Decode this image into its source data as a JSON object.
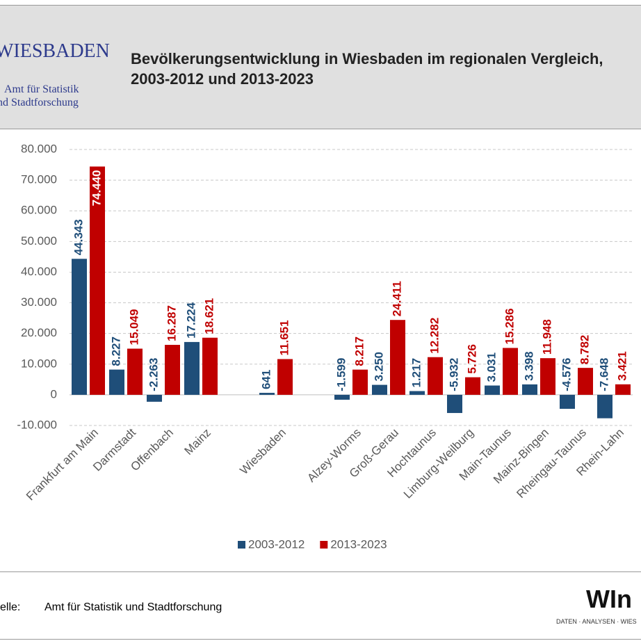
{
  "header": {
    "logo_name": "WIESBADEN",
    "logo_line1": "Amt für Statistik",
    "logo_line2": "nd Stadtforschung"
  },
  "chart_data": {
    "type": "bar",
    "title": "Bevölkerungsentwicklung in Wiesbaden im regionalen Vergleich, 2003-2012 und 2013-2023",
    "categories": [
      "Frankfurt am Main",
      "Darmstadt",
      "Offenbach",
      "Mainz",
      null,
      "Wiesbaden",
      null,
      "Alzey-Worms",
      "Groß-Gerau",
      "Hochtaunus",
      "Limburg-Weilburg",
      "Main-Taunus",
      "Mainz-Bingen",
      "Rheingau-Taunus",
      "Rhein-Lahn"
    ],
    "series": [
      {
        "name": "2003-2012",
        "color": "#1f4e79",
        "values": [
          44343,
          8227,
          -2263,
          17224,
          null,
          641,
          null,
          -1599,
          3250,
          1217,
          -5932,
          3031,
          3398,
          -4576,
          -7648
        ],
        "value_labels": [
          "44.343",
          "8.227",
          "-2.263",
          "17.224",
          null,
          "641",
          null,
          "-1.599",
          "3.250",
          "1.217",
          "-5.932",
          "3.031",
          "3.398",
          "-4.576",
          "-7.648"
        ]
      },
      {
        "name": "2013-2023",
        "color": "#c00000",
        "values": [
          74440,
          15049,
          16287,
          18621,
          null,
          11651,
          null,
          8217,
          24411,
          12282,
          5726,
          15286,
          11948,
          8782,
          3421
        ],
        "value_labels": [
          "74.440",
          "15.049",
          "16.287",
          "18.621",
          null,
          "11.651",
          null,
          "8.217",
          "24.411",
          "12.282",
          "5.726",
          "15.286",
          "11.948",
          "8.782",
          "3.421"
        ]
      }
    ],
    "ylim": [
      -10000,
      80000
    ],
    "yticks": [
      {
        "value": -10000,
        "label": "-10.000"
      },
      0,
      {
        "value": 10000,
        "label": "10.000"
      },
      {
        "value": 20000,
        "label": "20.000"
      },
      {
        "value": 30000,
        "label": "30.000"
      },
      {
        "value": 40000,
        "label": "40.000"
      },
      {
        "value": 50000,
        "label": "50.000"
      },
      {
        "value": 60000,
        "label": "60.000"
      },
      {
        "value": 70000,
        "label": "70.000"
      },
      {
        "value": 80000,
        "label": "80.000"
      }
    ],
    "grid": true,
    "legend": "bottom"
  },
  "footer": {
    "source_label": "elle:",
    "source": "Amt für Statistik und Stadtforschung",
    "logo": "WIn",
    "tagline": "DATEN · ANALYSEN · WIES"
  }
}
